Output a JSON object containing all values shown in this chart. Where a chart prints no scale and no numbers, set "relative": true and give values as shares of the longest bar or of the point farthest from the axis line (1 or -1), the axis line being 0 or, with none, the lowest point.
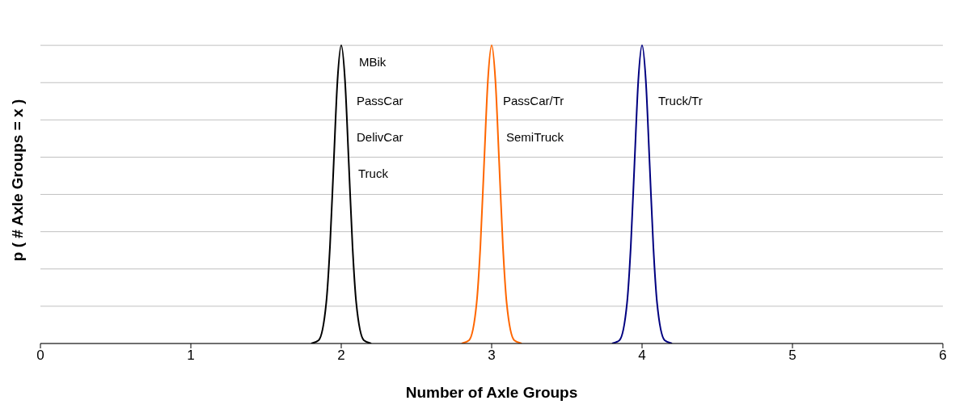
{
  "chart_data": {
    "type": "line",
    "relative": true,
    "xlabel": "Number of Axle Groups",
    "ylabel": "p ( # Axle Groups = x )",
    "xlim": [
      0,
      6
    ],
    "xticks": [
      0,
      1,
      2,
      3,
      4,
      5,
      6
    ],
    "grid": "y",
    "marker": "none",
    "line_style": "solid",
    "series": [
      {
        "color": "#000000",
        "x": [
          1.8,
          1.85,
          1.9,
          1.925,
          1.95,
          1.975,
          2,
          2.025,
          2.05,
          2.075,
          2.1,
          2.15,
          2.2
        ],
        "values": [
          0,
          0.011,
          0.135,
          0.325,
          0.607,
          0.882,
          1,
          0.882,
          0.607,
          0.325,
          0.135,
          0.011,
          0
        ]
      },
      {
        "color": "#ff6600",
        "x": [
          2.8,
          2.85,
          2.9,
          2.925,
          2.95,
          2.975,
          3,
          3.025,
          3.05,
          3.075,
          3.1,
          3.15,
          3.2
        ],
        "values": [
          0,
          0.011,
          0.135,
          0.325,
          0.607,
          0.882,
          1,
          0.882,
          0.607,
          0.325,
          0.135,
          0.011,
          0
        ]
      },
      {
        "color": "#000080",
        "x": [
          3.8,
          3.85,
          3.9,
          3.925,
          3.95,
          3.975,
          4,
          4.025,
          4.05,
          4.075,
          4.1,
          4.15,
          4.2
        ],
        "values": [
          0,
          0.011,
          0.135,
          0.325,
          0.607,
          0.882,
          1,
          0.882,
          0.607,
          0.325,
          0.135,
          0.011,
          0
        ]
      }
    ],
    "annotations": [
      "MBik",
      "PassCar",
      "DelivCar",
      "Truck",
      "PassCar/Tr",
      "SemiTruck",
      "Truck/Tr"
    ]
  }
}
